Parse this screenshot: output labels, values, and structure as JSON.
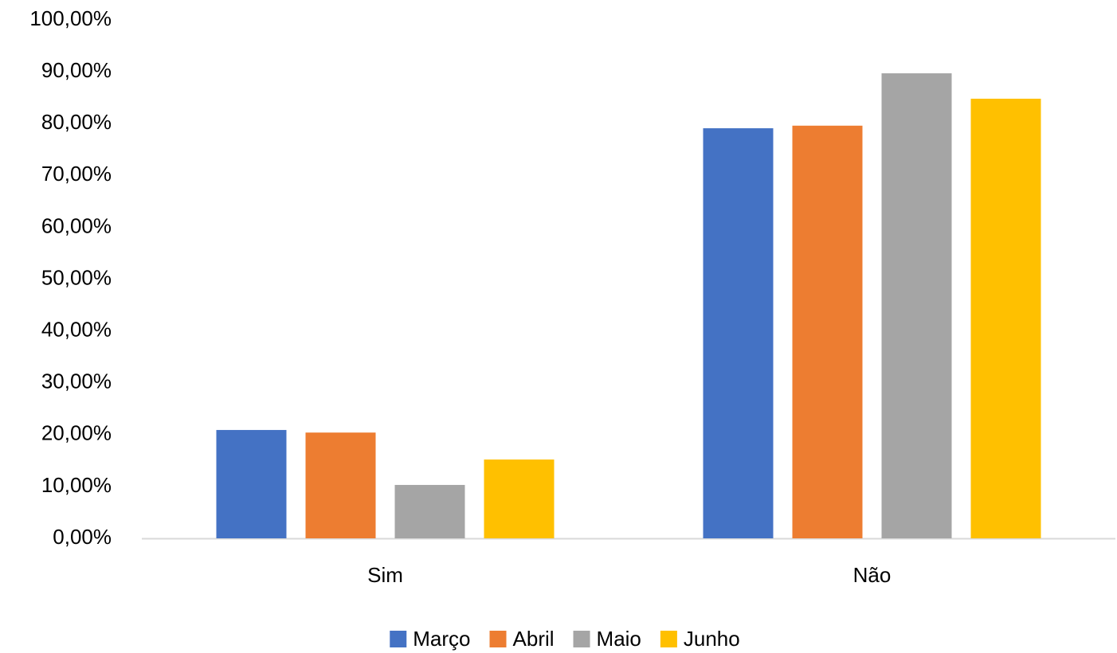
{
  "chart_data": {
    "type": "bar",
    "categories": [
      "Sim",
      "Não"
    ],
    "series": [
      {
        "name": "Março",
        "color": "#4472c4",
        "values": [
          20.9,
          79.1
        ]
      },
      {
        "name": "Abril",
        "color": "#ed7d31",
        "values": [
          20.4,
          79.6
        ]
      },
      {
        "name": "Maio",
        "color": "#a5a5a5",
        "values": [
          10.3,
          89.7
        ]
      },
      {
        "name": "Junho",
        "color": "#ffc000",
        "values": [
          15.2,
          84.8
        ]
      }
    ],
    "ylim": [
      0,
      100
    ],
    "yticks": [
      {
        "value": 0,
        "label": "0,00%"
      },
      {
        "value": 10,
        "label": "10,00%"
      },
      {
        "value": 20,
        "label": "20,00%"
      },
      {
        "value": 30,
        "label": "30,00%"
      },
      {
        "value": 40,
        "label": "40,00%"
      },
      {
        "value": 50,
        "label": "50,00%"
      },
      {
        "value": 60,
        "label": "60,00%"
      },
      {
        "value": 70,
        "label": "70,00%"
      },
      {
        "value": 80,
        "label": "80,00%"
      },
      {
        "value": 90,
        "label": "90,00%"
      },
      {
        "value": 100,
        "label": "100,00%"
      }
    ],
    "grid": false,
    "legend": "bottom"
  }
}
